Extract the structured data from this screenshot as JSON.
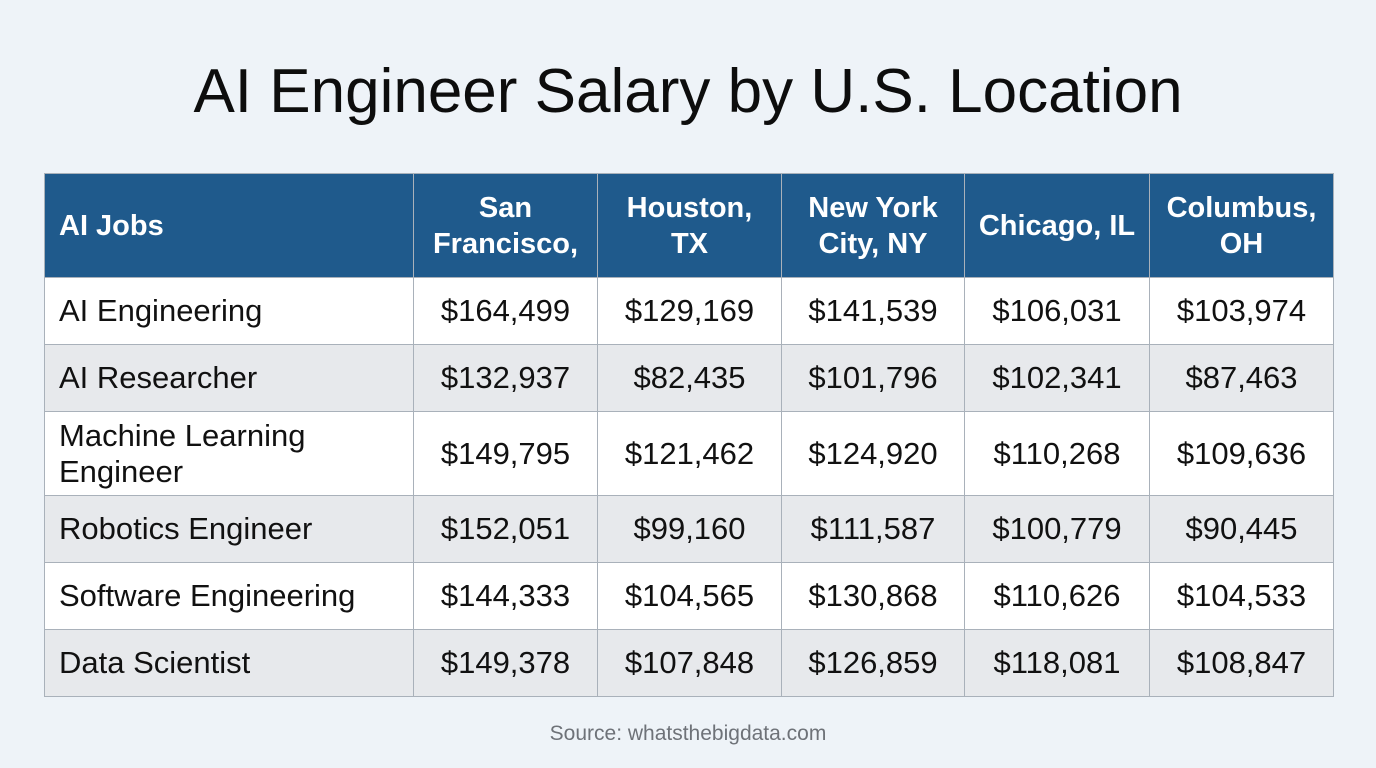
{
  "chart_data": {
    "type": "table",
    "title": "AI Engineer Salary by U.S. Location",
    "row_header": "AI Jobs",
    "columns": [
      "San Francisco,",
      "Houston, TX",
      "New York City, NY",
      "Chicago, IL",
      "Columbus, OH"
    ],
    "rows": [
      {
        "label": "AI Engineering",
        "values": [
          "$164,499",
          "$129,169",
          "$141,539",
          "$106,031",
          "$103,974"
        ]
      },
      {
        "label": "AI Researcher",
        "values": [
          "$132,937",
          "$82,435",
          "$101,796",
          "$102,341",
          "$87,463"
        ]
      },
      {
        "label": "Machine Learning Engineer",
        "values": [
          "$149,795",
          "$121,462",
          "$124,920",
          "$110,268",
          "$109,636"
        ]
      },
      {
        "label": "Robotics Engineer",
        "values": [
          "$152,051",
          "$99,160",
          "$111,587",
          "$100,779",
          "$90,445"
        ]
      },
      {
        "label": "Software Engineering",
        "values": [
          "$144,333",
          "$104,565",
          "$130,868",
          "$110,626",
          "$104,533"
        ]
      },
      {
        "label": "Data Scientist",
        "values": [
          "$149,378",
          "$107,848",
          "$126,859",
          "$118,081",
          "$108,847"
        ]
      }
    ],
    "source": "Source: whatsthebigdata.com"
  },
  "colors": {
    "header_background": "#1f5a8c",
    "header_text": "#ffffff",
    "row_alt_background": "#e7e9ec",
    "page_background": "#eef3f8"
  }
}
